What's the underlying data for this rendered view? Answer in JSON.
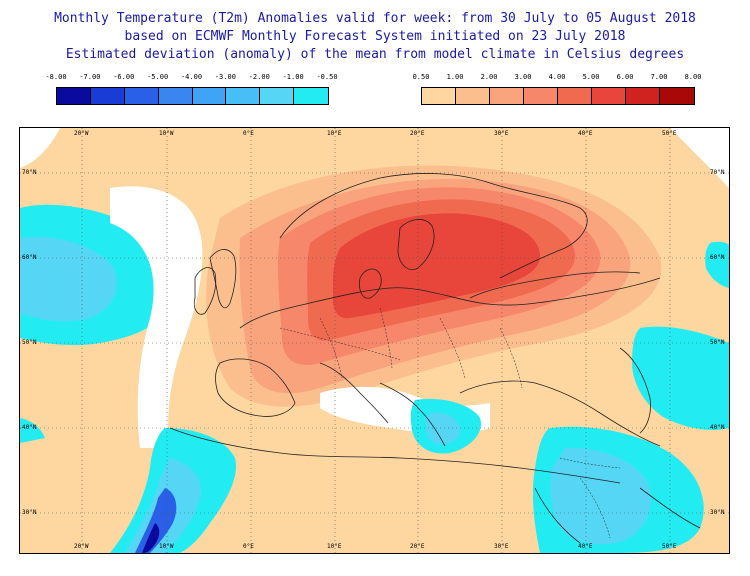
{
  "title": {
    "line1": "Monthly Temperature (T2m) Anomalies valid for week: from 30 July to 05 August 2018",
    "line2": "based on ECMWF Monthly Forecast System initiated on 23 July 2018",
    "line3": "Estimated deviation (anomaly) of the mean from model climate in Celsius degrees"
  },
  "legend_negative": {
    "labels": [
      "-8.00",
      "-7.00",
      "-6.00",
      "-5.00",
      "-4.00",
      "-3.00",
      "-2.00",
      "-1.00",
      "-0.50"
    ],
    "colors": [
      "#0a0a9e",
      "#1a3cd6",
      "#2a60e8",
      "#3a86f0",
      "#3fa4f5",
      "#48bef7",
      "#55d6f5",
      "#22ecf2"
    ]
  },
  "legend_positive": {
    "labels": [
      "0.50",
      "1.00",
      "2.00",
      "3.00",
      "4.00",
      "5.00",
      "6.00",
      "7.00",
      "8.00"
    ],
    "colors": [
      "#fdd6a0",
      "#fbbf8e",
      "#f9a47c",
      "#f7876a",
      "#f06a4f",
      "#e8463a",
      "#d0221f",
      "#a80808"
    ]
  },
  "axes": {
    "lon_labels": [
      "20°W",
      "10°W",
      "0°E",
      "10°E",
      "20°E",
      "30°E",
      "40°E",
      "50°E"
    ],
    "lat_labels": [
      "70°N",
      "60°N",
      "50°N",
      "40°N",
      "30°N"
    ]
  }
}
